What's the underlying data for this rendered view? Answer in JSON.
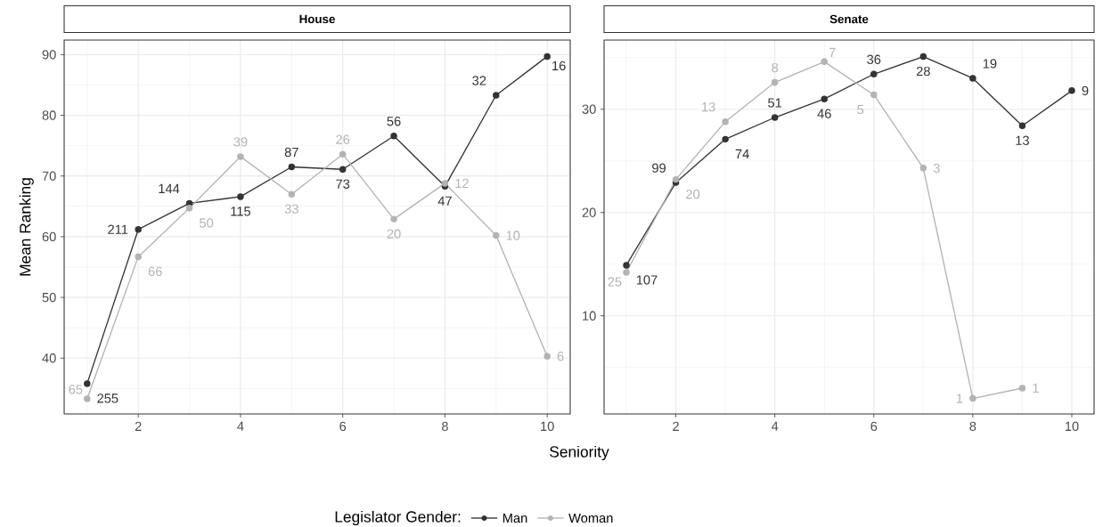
{
  "chart_data": [
    {
      "type": "line",
      "title": "House",
      "xlabel": "Seniority",
      "ylabel": "Mean Ranking",
      "legend_title": "Legislator Gender:",
      "legend": "bottom",
      "grid": true,
      "marker": "circle",
      "line_style": "solid",
      "x": [
        1,
        2,
        3,
        4,
        5,
        6,
        7,
        8,
        9,
        10
      ],
      "series": [
        {
          "name": "Man",
          "color": "#333333",
          "values": [
            35.8,
            61.2,
            65.5,
            66.6,
            71.5,
            71.1,
            76.6,
            68.3,
            83.3,
            89.7
          ]
        },
        {
          "name": "Woman",
          "color": "#b3b3b3",
          "values": [
            33.3,
            56.7,
            64.7,
            73.2,
            67.0,
            73.6,
            62.9,
            68.8,
            60.2,
            40.3
          ]
        }
      ],
      "xlim": [
        0.55,
        10.45
      ],
      "ylim": [
        30.8,
        92.4
      ],
      "xticks": [
        2,
        4,
        6,
        8,
        10
      ],
      "yticks": [
        40,
        50,
        60,
        70,
        80,
        90
      ],
      "annotations": [
        {
          "text": "255",
          "x": 1,
          "y": 35.8
        },
        {
          "text": "211",
          "x": 2,
          "y": 61.2
        },
        {
          "text": "144",
          "x": 3,
          "y": 65.5
        },
        {
          "text": "115",
          "x": 4,
          "y": 66.6
        },
        {
          "text": "87",
          "x": 5,
          "y": 71.5
        },
        {
          "text": "73",
          "x": 6,
          "y": 71.1
        },
        {
          "text": "56",
          "x": 7,
          "y": 76.6
        },
        {
          "text": "47",
          "x": 8,
          "y": 68.3
        },
        {
          "text": "32",
          "x": 9,
          "y": 83.3
        },
        {
          "text": "16",
          "x": 10,
          "y": 89.7
        },
        {
          "text": "65",
          "x": 1,
          "y": 33.3
        },
        {
          "text": "66",
          "x": 2,
          "y": 56.7
        },
        {
          "text": "50",
          "x": 3,
          "y": 64.7
        },
        {
          "text": "39",
          "x": 4,
          "y": 73.2
        },
        {
          "text": "33",
          "x": 5,
          "y": 67.0
        },
        {
          "text": "26",
          "x": 6,
          "y": 73.6
        },
        {
          "text": "20",
          "x": 7,
          "y": 62.9
        },
        {
          "text": "12",
          "x": 8,
          "y": 68.8
        },
        {
          "text": "10",
          "x": 9,
          "y": 60.2
        },
        {
          "text": "6",
          "x": 10,
          "y": 40.3
        }
      ]
    },
    {
      "type": "line",
      "title": "Senate",
      "grid": true,
      "marker": "circle",
      "line_style": "solid",
      "x": [
        1,
        2,
        3,
        4,
        5,
        6,
        7,
        8,
        9,
        10
      ],
      "series": [
        {
          "color": "#333333",
          "values": [
            14.9,
            22.9,
            27.1,
            29.2,
            31.0,
            33.4,
            35.1,
            33.0,
            28.4,
            31.8
          ]
        },
        {
          "color": "#b3b3b3",
          "values": [
            14.2,
            23.2,
            28.8,
            32.6,
            34.6,
            31.4,
            24.3,
            2.0,
            3.0,
            null
          ]
        }
      ],
      "xlim": [
        0.55,
        10.45
      ],
      "ylim": [
        0.5,
        36.7
      ],
      "xticks": [
        2,
        4,
        6,
        8,
        10
      ],
      "yticks": [
        10,
        20,
        30
      ],
      "annotations": [
        {
          "text": "107",
          "x": 1,
          "y": 14.9
        },
        {
          "text": "99",
          "x": 2,
          "y": 22.9
        },
        {
          "text": "74",
          "x": 3,
          "y": 27.1
        },
        {
          "text": "51",
          "x": 4,
          "y": 29.2
        },
        {
          "text": "46",
          "x": 5,
          "y": 31.0
        },
        {
          "text": "36",
          "x": 6,
          "y": 33.4
        },
        {
          "text": "28",
          "x": 7,
          "y": 35.1
        },
        {
          "text": "19",
          "x": 8,
          "y": 33.0
        },
        {
          "text": "13",
          "x": 9,
          "y": 28.4
        },
        {
          "text": "9",
          "x": 10,
          "y": 31.8
        },
        {
          "text": "25",
          "x": 1,
          "y": 14.2
        },
        {
          "text": "20",
          "x": 2,
          "y": 23.2
        },
        {
          "text": "13",
          "x": 3,
          "y": 28.8
        },
        {
          "text": "8",
          "x": 4,
          "y": 32.6
        },
        {
          "text": "7",
          "x": 5,
          "y": 34.6
        },
        {
          "text": "5",
          "x": 6,
          "y": 31.4
        },
        {
          "text": "3",
          "x": 7,
          "y": 24.3
        },
        {
          "text": "1",
          "x": 8,
          "y": 2.0
        },
        {
          "text": "1",
          "x": 9,
          "y": 3.0
        }
      ]
    }
  ]
}
